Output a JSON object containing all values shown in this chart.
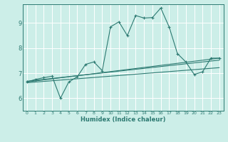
{
  "xlabel": "Humidex (Indice chaleur)",
  "bg_color": "#cceee8",
  "grid_color": "#ffffff",
  "line_color": "#2d7a72",
  "xlim": [
    -0.5,
    23.5
  ],
  "ylim": [
    5.5,
    9.75
  ],
  "xticks": [
    0,
    1,
    2,
    3,
    4,
    5,
    6,
    7,
    8,
    9,
    10,
    11,
    12,
    13,
    14,
    15,
    16,
    17,
    18,
    19,
    20,
    21,
    22,
    23
  ],
  "yticks": [
    6,
    7,
    8,
    9
  ],
  "main_x": [
    0,
    1,
    2,
    3,
    4,
    5,
    6,
    7,
    8,
    9,
    10,
    11,
    12,
    13,
    14,
    15,
    16,
    17,
    18,
    19,
    20,
    21,
    22,
    23
  ],
  "main_y": [
    6.65,
    6.75,
    6.82,
    6.88,
    6.0,
    6.65,
    6.85,
    7.35,
    7.45,
    7.1,
    8.85,
    9.05,
    8.5,
    9.3,
    9.2,
    9.22,
    9.6,
    8.85,
    7.78,
    7.45,
    6.95,
    7.05,
    7.6,
    7.6
  ],
  "line1_x": [
    0,
    23
  ],
  "line1_y": [
    6.65,
    7.6
  ],
  "line2_x": [
    0,
    23
  ],
  "line2_y": [
    6.62,
    7.22
  ],
  "line3_x": [
    0,
    23
  ],
  "line3_y": [
    6.68,
    7.52
  ]
}
